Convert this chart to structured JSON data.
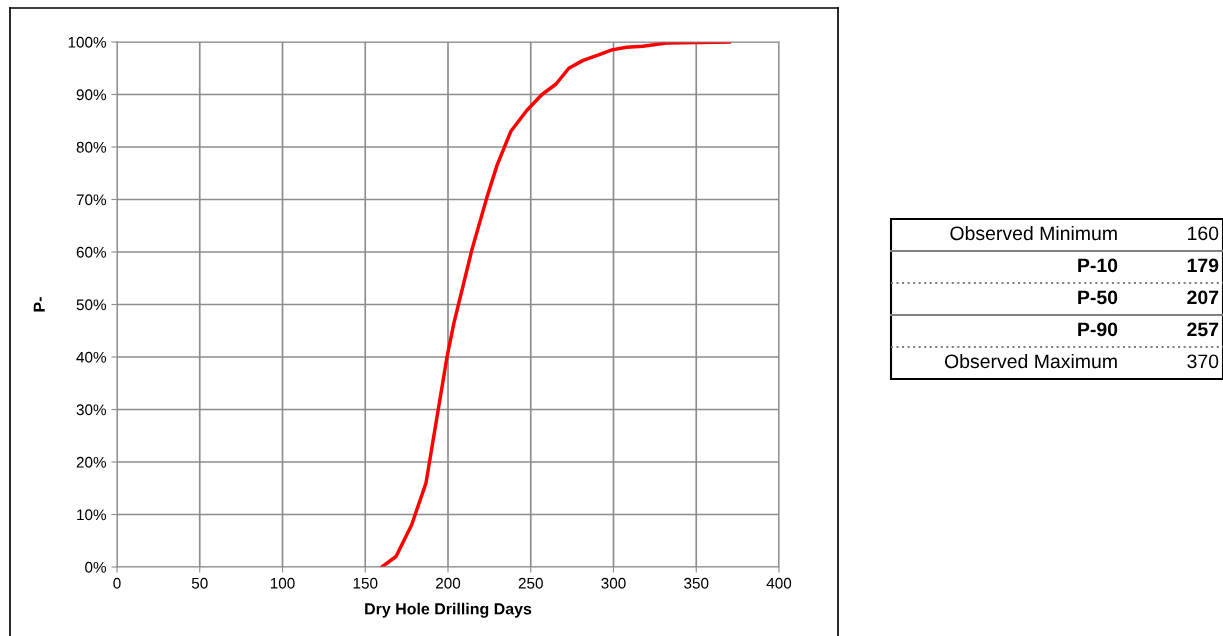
{
  "chart_data": {
    "type": "line",
    "xlabel": "Dry Hole Drilling Days",
    "ylabel": "P-",
    "x": [
      160,
      168.6,
      178,
      186.7,
      199.4,
      203.6,
      214.5,
      223.6,
      229.6,
      238,
      247.7,
      256.8,
      265.3,
      273,
      281.6,
      290.6,
      299,
      308,
      317.8,
      332,
      370
    ],
    "series": [
      {
        "color": "#ff0000",
        "values": [
          0,
          2,
          8,
          16,
          40,
          46.5,
          60.5,
          70.5,
          76.5,
          83,
          87,
          90,
          92,
          95,
          96.5,
          97.5,
          98.5,
          99,
          99.2,
          99.8,
          100
        ]
      }
    ],
    "xlim": [
      0,
      400
    ],
    "xticks": [
      0,
      50,
      100,
      150,
      200,
      250,
      300,
      350,
      400
    ],
    "ylim": [
      0,
      100
    ],
    "yticks": [
      {
        "value": 0,
        "label": "0%"
      },
      {
        "value": 10,
        "label": "10%"
      },
      {
        "value": 20,
        "label": "20%"
      },
      {
        "value": 30,
        "label": "30%"
      },
      {
        "value": 40,
        "label": "40%"
      },
      {
        "value": 50,
        "label": "50%"
      },
      {
        "value": 60,
        "label": "60%"
      },
      {
        "value": 70,
        "label": "70%"
      },
      {
        "value": 80,
        "label": "80%"
      },
      {
        "value": 90,
        "label": "90%"
      },
      {
        "value": 100,
        "label": "100%"
      }
    ],
    "grid": true,
    "marker": "none",
    "line_style": "solid",
    "annotations": [
      "Observed Minimum",
      "160",
      "P-10",
      "179",
      "P-50",
      "207",
      "P-90",
      "257",
      "Observed Maximum",
      "370"
    ]
  }
}
